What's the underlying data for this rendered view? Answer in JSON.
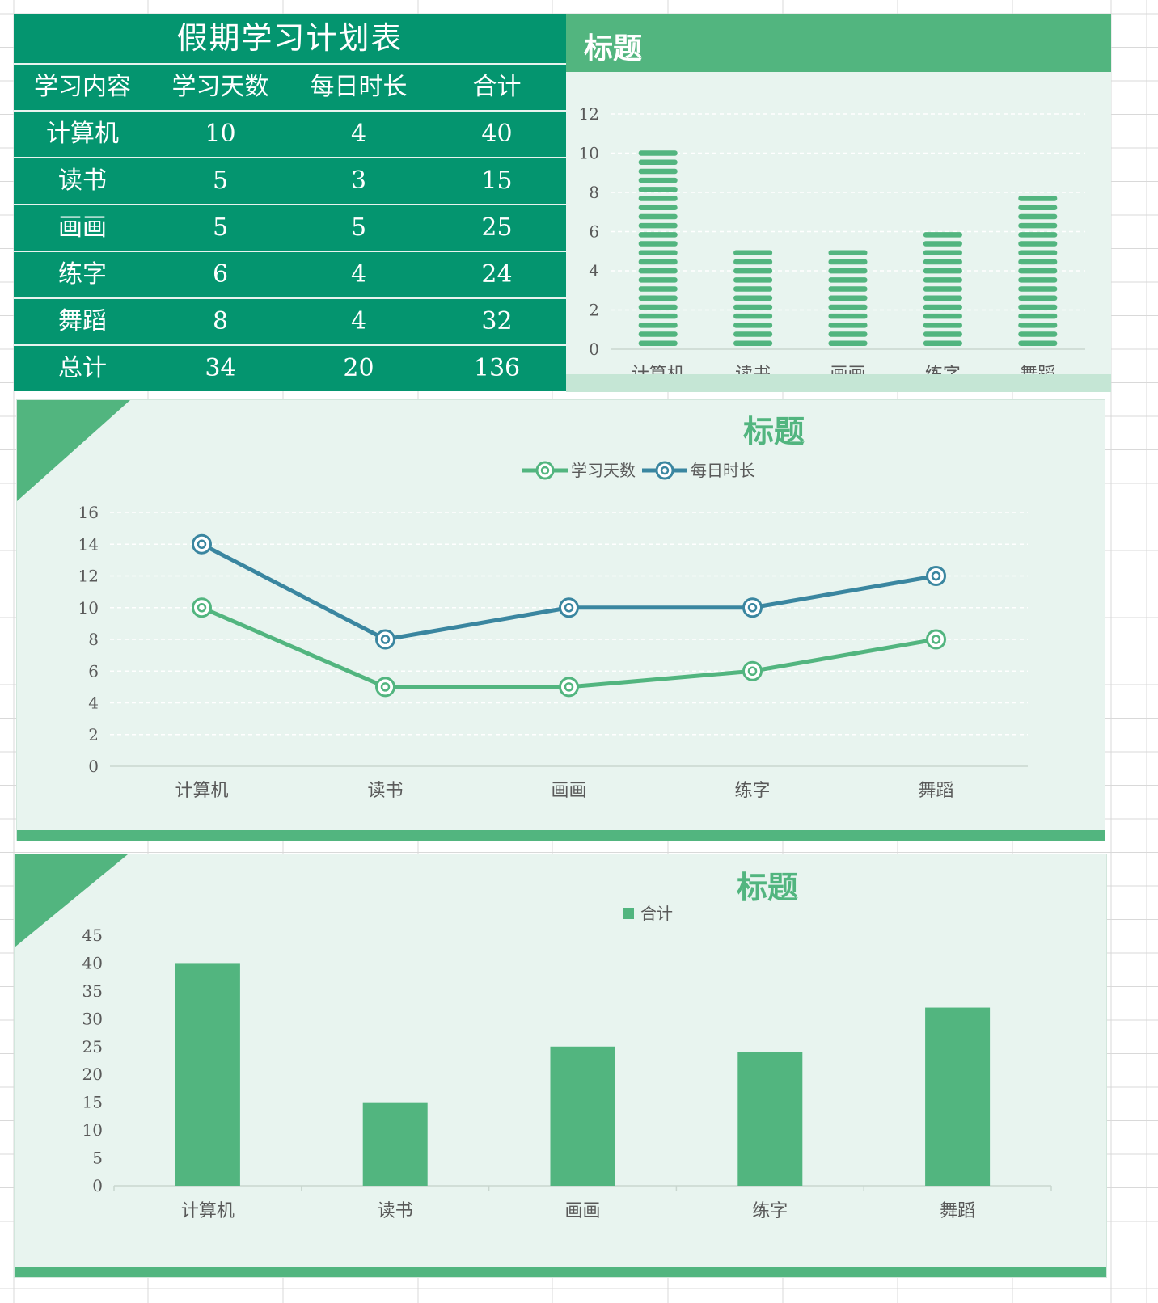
{
  "table": {
    "title": "假期学习计划表",
    "headers": [
      "学习内容",
      "学习天数",
      "每日时长",
      "合计"
    ],
    "rows": [
      [
        "计算机",
        "10",
        "4",
        "40"
      ],
      [
        "读书",
        "5",
        "3",
        "15"
      ],
      [
        "画画",
        "5",
        "5",
        "25"
      ],
      [
        "练字",
        "6",
        "4",
        "24"
      ],
      [
        "舞蹈",
        "8",
        "4",
        "32"
      ]
    ],
    "total": [
      "总计",
      "34",
      "20",
      "136"
    ]
  },
  "colors": {
    "table_bg": "#04956f",
    "green": "#52b57f",
    "blue": "#3a86a0",
    "panel_bg": "#e8f4ef"
  },
  "chart_data": [
    {
      "type": "bar",
      "title": "标题",
      "categories": [
        "计算机",
        "读书",
        "画画",
        "练字",
        "舞蹈"
      ],
      "values": [
        10,
        5,
        5,
        6,
        8
      ],
      "ylim": [
        0,
        12
      ],
      "yticks": [
        0,
        2,
        4,
        6,
        8,
        10,
        12
      ],
      "grid": true,
      "style": "striped"
    },
    {
      "type": "line",
      "title": "标题",
      "categories": [
        "计算机",
        "读书",
        "画画",
        "练字",
        "舞蹈"
      ],
      "series": [
        {
          "name": "学习天数",
          "values": [
            10,
            5,
            5,
            6,
            8
          ],
          "color": "#52b57f"
        },
        {
          "name": "每日时长",
          "values": [
            14,
            8,
            10,
            10,
            12
          ],
          "color": "#3a86a0"
        }
      ],
      "ylim": [
        0,
        16
      ],
      "yticks": [
        0,
        2,
        4,
        6,
        8,
        10,
        12,
        14,
        16
      ],
      "legend": "top",
      "grid": true
    },
    {
      "type": "bar",
      "title": "标题",
      "categories": [
        "计算机",
        "读书",
        "画画",
        "练字",
        "舞蹈"
      ],
      "series": [
        {
          "name": "合计",
          "values": [
            40,
            15,
            25,
            24,
            32
          ],
          "color": "#52b57f"
        }
      ],
      "ylim": [
        0,
        45
      ],
      "yticks": [
        0,
        5,
        10,
        15,
        20,
        25,
        30,
        35,
        40,
        45
      ],
      "legend": "top",
      "grid": false
    }
  ]
}
